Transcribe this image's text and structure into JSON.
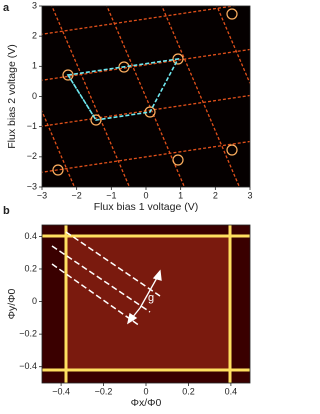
{
  "chart_data": [
    {
      "type": "heatmap",
      "panel_label": "a",
      "x_label": "Flux bias 1 voltage (V)",
      "y_label": "Flux bias 2 voltage (V)",
      "xlim": [
        -3,
        3
      ],
      "ylim": [
        -3,
        3
      ],
      "xticks": [
        {
          "value": -3,
          "label": "−3"
        },
        {
          "value": -2,
          "label": "−2"
        },
        {
          "value": -1,
          "label": "−1"
        },
        0,
        1,
        2,
        3
      ],
      "yticks": [
        {
          "value": -3,
          "label": "−3"
        },
        {
          "value": -2,
          "label": "−2"
        },
        {
          "value": -1,
          "label": "−1"
        },
        0,
        1,
        2,
        3
      ]
    },
    {
      "type": "heatmap",
      "panel_label": "b",
      "x_label": "Φx/Φ0",
      "y_label": "Φy/Φ0",
      "annotation": "g",
      "xlim": [
        -0.49,
        0.49
      ],
      "ylim": [
        -0.5,
        0.47
      ],
      "xticks": [
        {
          "value": -0.4,
          "label": "−0.4"
        },
        {
          "value": -0.2,
          "label": "−0.2"
        },
        0,
        0.2,
        0.4
      ],
      "yticks": [
        {
          "value": -0.4,
          "label": "−0.4"
        },
        {
          "value": -0.2,
          "label": "−0.2"
        },
        0,
        0.2,
        0.4
      ]
    }
  ]
}
